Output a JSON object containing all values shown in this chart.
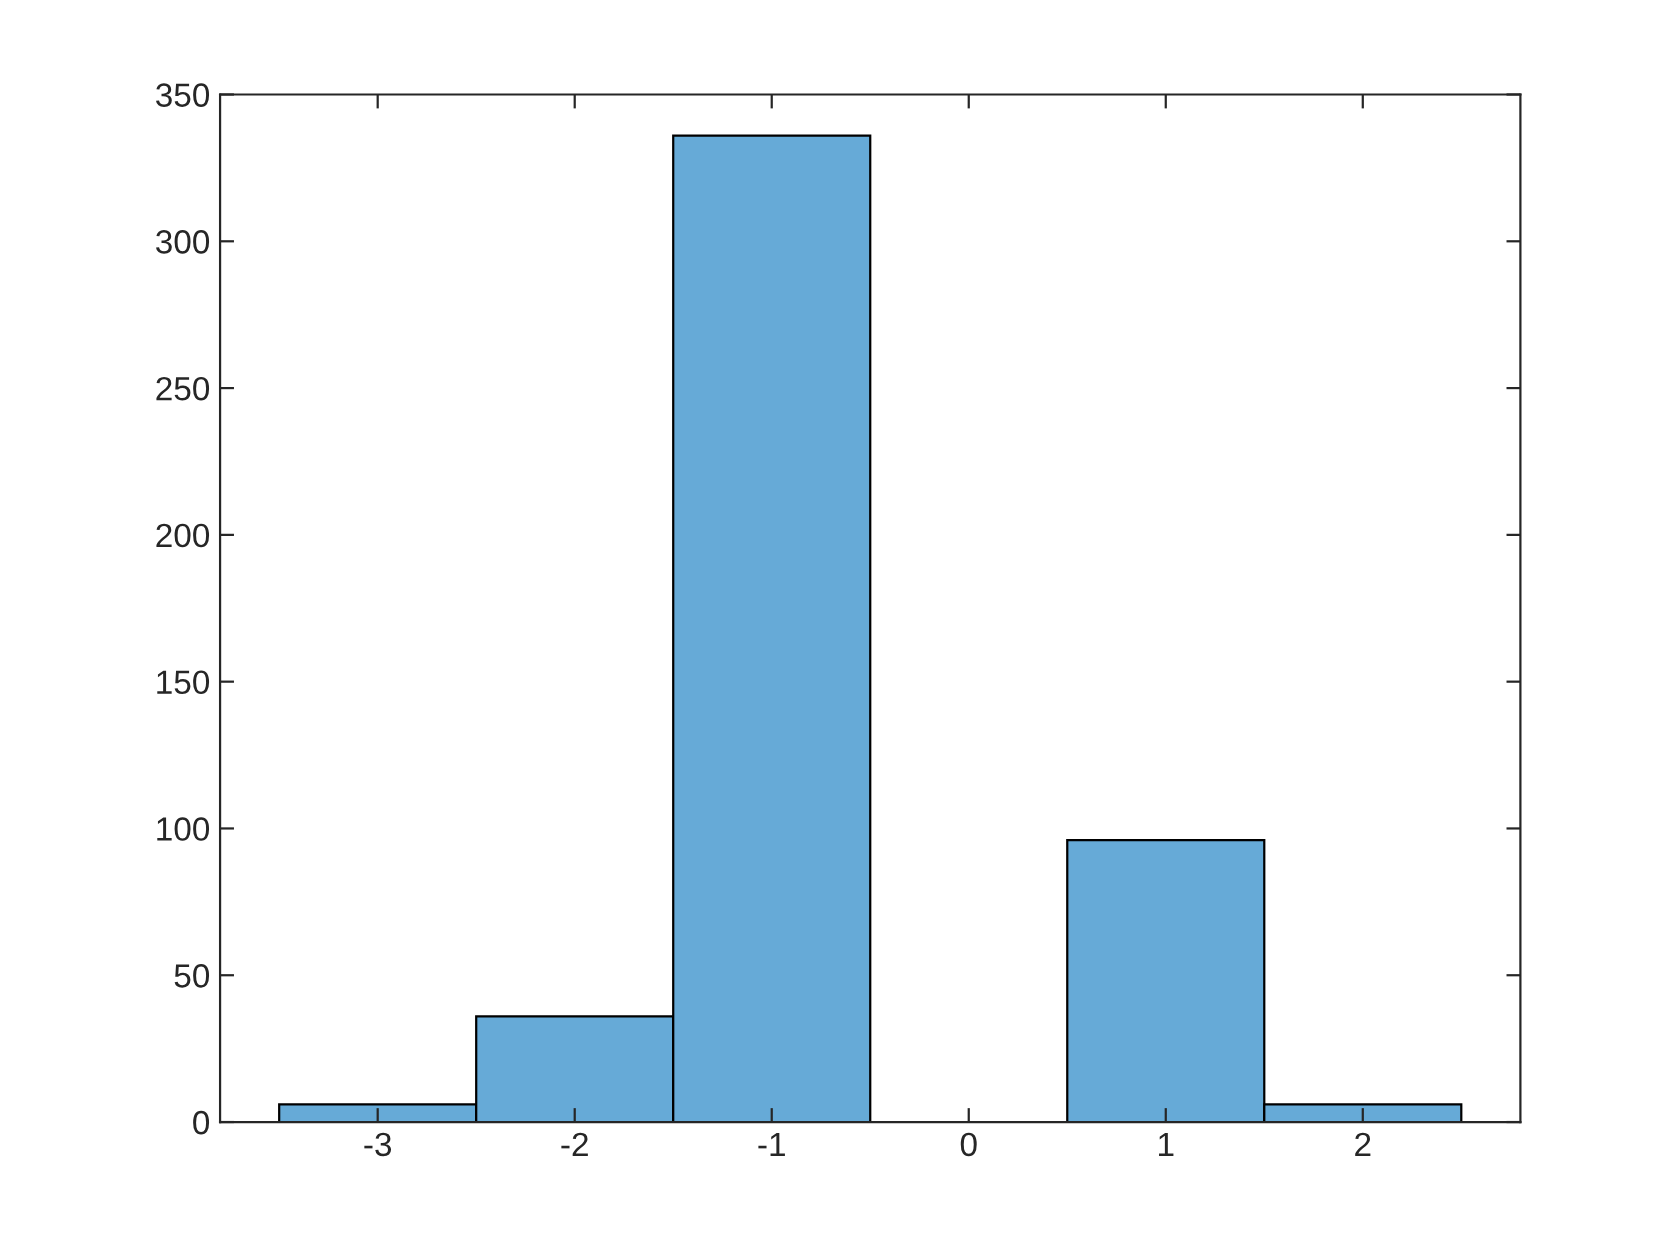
{
  "chart_data": {
    "type": "histogram",
    "bins": [
      -3.5,
      -2.5,
      -1.5,
      -0.5,
      0.5,
      1.5,
      2.5
    ],
    "values": [
      6,
      36,
      336,
      0,
      96,
      6
    ],
    "color": "#66aad7",
    "xlim": [
      -3.8,
      2.8
    ],
    "xticks": [
      -3,
      -2,
      -1,
      0,
      1,
      2
    ],
    "ylim": [
      0,
      350
    ],
    "yticks": [
      0,
      50,
      100,
      150,
      200,
      250,
      300,
      350
    ],
    "grid": false,
    "legend": false
  }
}
